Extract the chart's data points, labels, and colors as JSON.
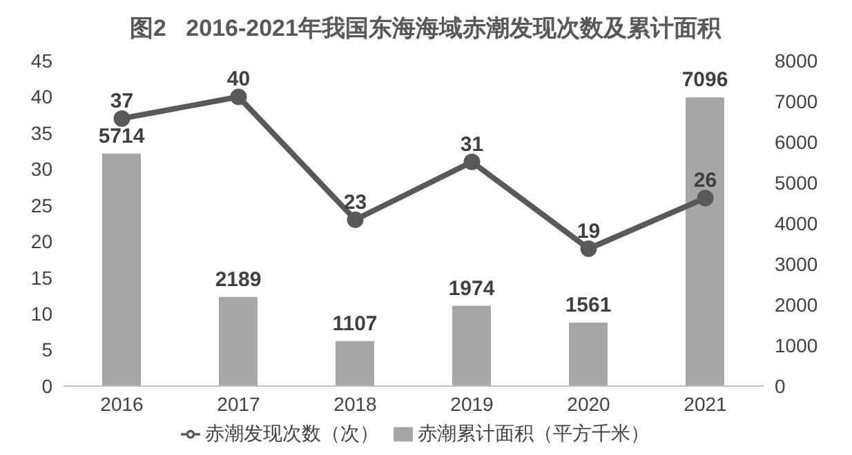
{
  "chart_data": {
    "type": "bar",
    "title": "图2   2016-2021年我国东海海域赤潮发现次数及累计面积",
    "categories": [
      "2016",
      "2017",
      "2018",
      "2019",
      "2020",
      "2021"
    ],
    "series": [
      {
        "name": "赤潮累计面积（平方千米）",
        "axis": "y2",
        "color": "#a6a6a6",
        "values": [
          5714,
          2189,
          1107,
          1974,
          1561,
          7096
        ]
      },
      {
        "name": "赤潮发现次数（次）",
        "type": "line",
        "axis": "y",
        "color": "#595959",
        "marker": "circle",
        "values": [
          37,
          40,
          23,
          31,
          19,
          26
        ]
      }
    ],
    "ylim": [
      0,
      45
    ],
    "yticks": [
      0,
      5,
      10,
      15,
      20,
      25,
      30,
      35,
      40,
      45
    ],
    "y2lim": [
      0,
      8000
    ],
    "y2ticks": [
      0,
      1000,
      2000,
      3000,
      4000,
      5000,
      6000,
      7000,
      8000
    ],
    "data_labels": true,
    "legend": "bottom",
    "grid": false
  }
}
